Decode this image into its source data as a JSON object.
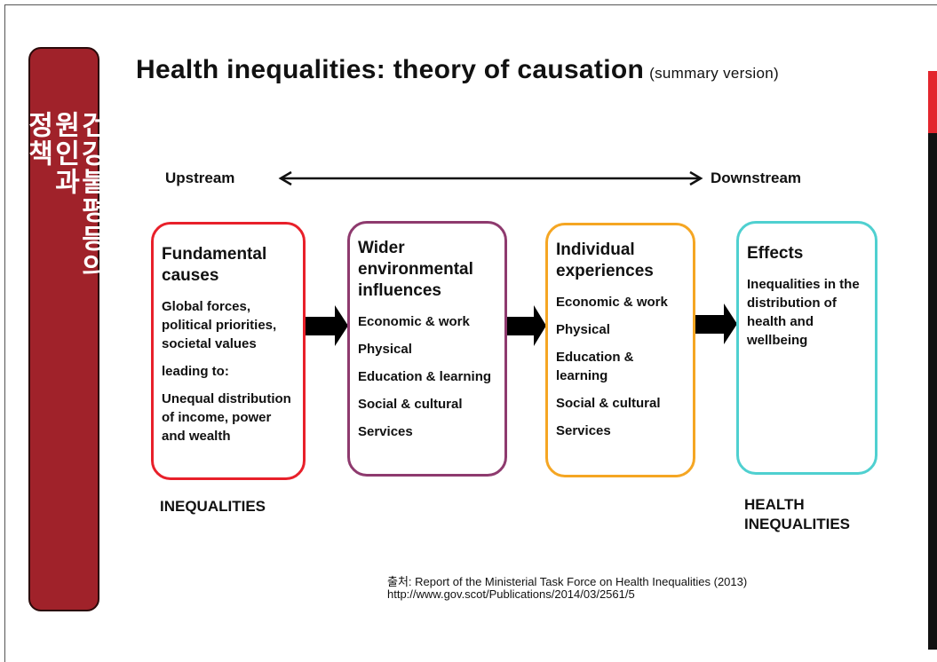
{
  "sidebar": {
    "lines": [
      "건강불평등의",
      "원인과",
      "정책"
    ]
  },
  "header": {
    "title": "Health inequalities: theory of causation",
    "subtitle": "(summary version)"
  },
  "axis": {
    "left": "Upstream",
    "right": "Downstream"
  },
  "nodes": [
    {
      "title": "Fundamental causes",
      "items": [
        "Global forces, political priorities, societal values",
        "leading to:",
        "Unequal distribution of income, power and wealth"
      ]
    },
    {
      "title": "Wider environmental influences",
      "items": [
        "Economic & work",
        "Physical",
        "Education & learning",
        "Social & cultural",
        "Services"
      ]
    },
    {
      "title": "Individual experiences",
      "items": [
        "Economic & work",
        "Physical",
        "Education & learning",
        "Social & cultural",
        "Services"
      ]
    },
    {
      "title": "Effects",
      "items": [
        "Inequalities in the distribution of health and wellbeing"
      ]
    }
  ],
  "labels": {
    "left": "INEQUALITIES",
    "right": "HEALTH INEQUALITIES"
  },
  "source": {
    "line1": "출처: Report of the Ministerial Task Force on Health Inequalities (2013)",
    "line2": "http://www.gov.scot/Publications/2014/03/2561/5"
  }
}
